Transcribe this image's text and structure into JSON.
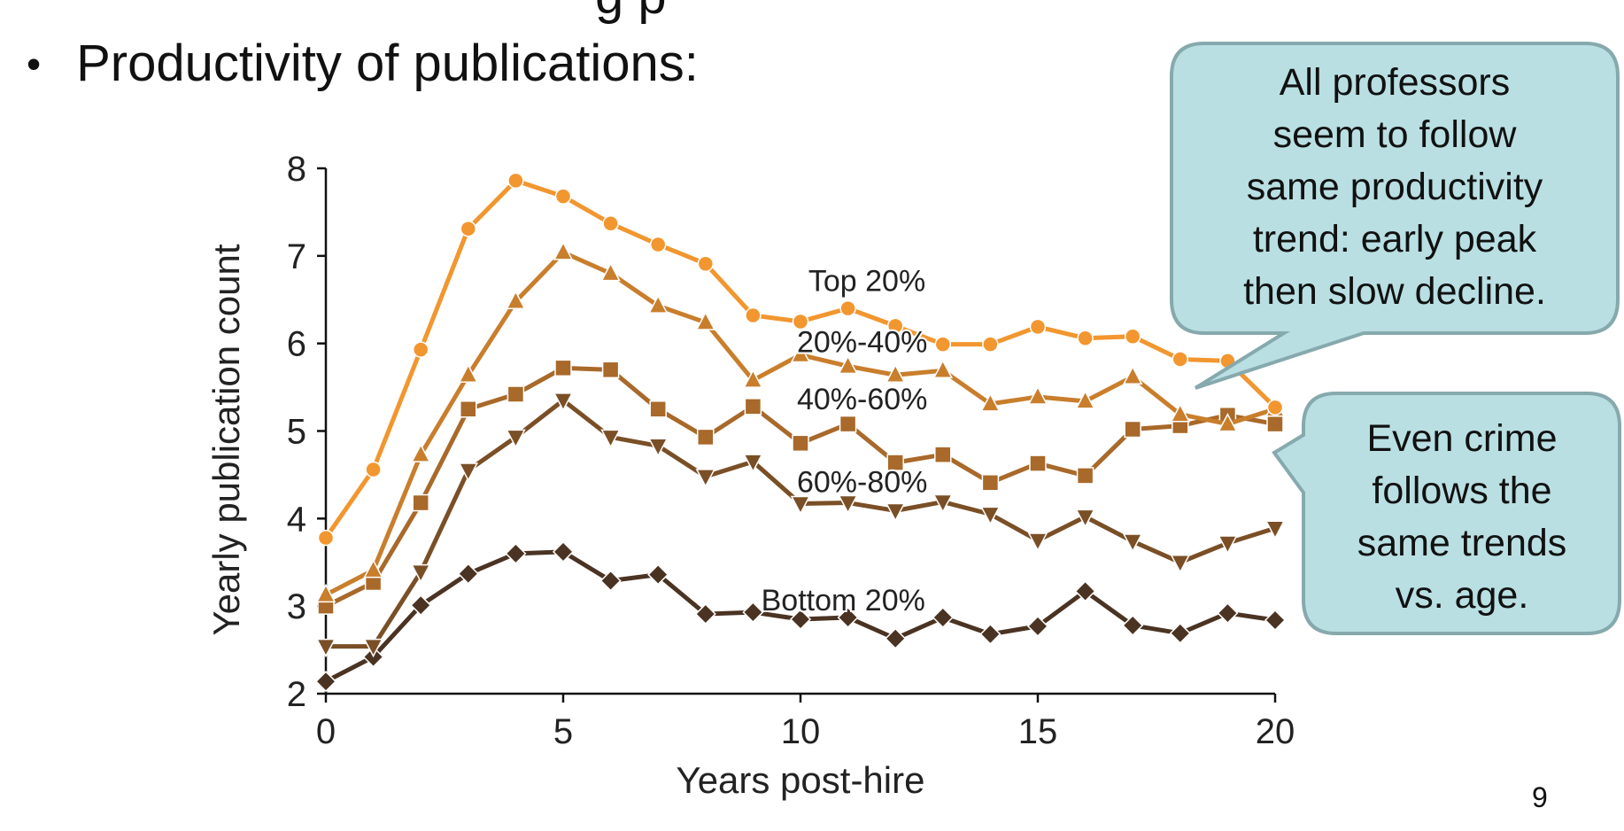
{
  "slide": {
    "heading_partial": "g p",
    "bullet": "Productivity of publications:",
    "page_number": "9"
  },
  "callouts": [
    {
      "lines": [
        "All professors",
        "seem to follow",
        "same productivity",
        "trend: early peak",
        "then slow decline."
      ]
    },
    {
      "lines": [
        "Even crime",
        "follows the",
        "same trends",
        "vs. age."
      ]
    }
  ],
  "colors": {
    "callout_fill": "#b9dfe3",
    "callout_border": "#86a9ad",
    "top20": "#f2962f",
    "p20_40": "#c97e2c",
    "p40_60": "#a8692a",
    "p60_80": "#7a4f26",
    "bottom20": "#4a3322"
  },
  "chart_data": {
    "type": "line",
    "xlabel": "Years post-hire",
    "ylabel": "Yearly publication count",
    "xlim": [
      0,
      20
    ],
    "ylim": [
      2,
      8
    ],
    "xticks": [
      0,
      5,
      10,
      15,
      20
    ],
    "yticks": [
      2,
      3,
      4,
      5,
      6,
      7,
      8
    ],
    "grid": false,
    "x": [
      0,
      1,
      2,
      3,
      4,
      5,
      6,
      7,
      8,
      9,
      10,
      11,
      12,
      13,
      14,
      15,
      16,
      17,
      18,
      19,
      20
    ],
    "series": [
      {
        "name": "Top 20%",
        "marker": "circle",
        "color": "#f2962f",
        "values": [
          3.78,
          4.56,
          5.93,
          7.31,
          7.86,
          7.68,
          7.37,
          7.13,
          6.91,
          6.32,
          6.25,
          6.4,
          6.2,
          5.99,
          5.99,
          6.19,
          6.06,
          6.08,
          5.82,
          5.8,
          5.27
        ]
      },
      {
        "name": "20%-40%",
        "marker": "triangle-up",
        "color": "#c97e2c",
        "values": [
          3.13,
          3.41,
          4.73,
          5.64,
          6.48,
          7.04,
          6.8,
          6.43,
          6.24,
          5.58,
          5.87,
          5.74,
          5.64,
          5.69,
          5.31,
          5.39,
          5.34,
          5.62,
          5.19,
          5.08,
          5.25
        ]
      },
      {
        "name": "40%-60%",
        "marker": "square",
        "color": "#a8692a",
        "values": [
          3.0,
          3.27,
          4.18,
          5.25,
          5.42,
          5.72,
          5.7,
          5.25,
          4.93,
          5.28,
          4.86,
          5.08,
          4.64,
          4.73,
          4.41,
          4.63,
          4.49,
          5.02,
          5.06,
          5.18,
          5.08
        ]
      },
      {
        "name": "60%-80%",
        "marker": "triangle-down",
        "color": "#7a4f26",
        "values": [
          2.54,
          2.54,
          3.39,
          4.55,
          4.93,
          5.35,
          4.93,
          4.83,
          4.48,
          4.65,
          4.17,
          4.18,
          4.09,
          4.19,
          4.05,
          3.75,
          4.02,
          3.74,
          3.5,
          3.72,
          3.89
        ]
      },
      {
        "name": "Bottom 20%",
        "marker": "diamond",
        "color": "#4a3322",
        "values": [
          2.14,
          2.42,
          3.01,
          3.37,
          3.6,
          3.62,
          3.29,
          3.36,
          2.91,
          2.93,
          2.85,
          2.87,
          2.63,
          2.87,
          2.68,
          2.77,
          3.17,
          2.78,
          2.69,
          2.92,
          2.84
        ]
      }
    ],
    "annotations": [
      {
        "text": "Top 20%",
        "x": 11.4,
        "y": 6.6
      },
      {
        "text": "20%-40%",
        "x": 11.3,
        "y": 5.9
      },
      {
        "text": "40%-60%",
        "x": 11.3,
        "y": 5.25
      },
      {
        "text": "60%-80%",
        "x": 11.3,
        "y": 4.3
      },
      {
        "text": "Bottom 20%",
        "x": 10.9,
        "y": 2.95
      }
    ]
  }
}
